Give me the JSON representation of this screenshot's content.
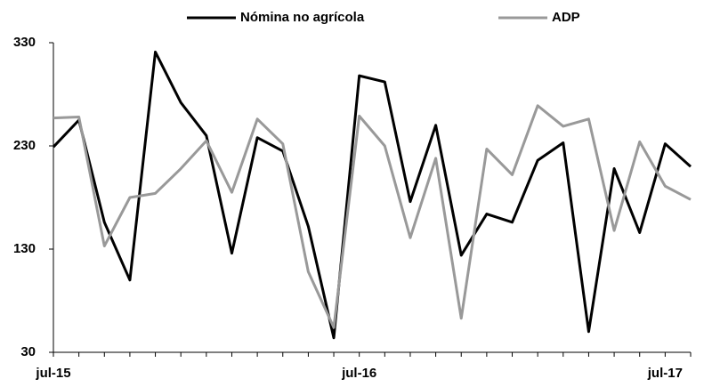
{
  "chart_data": {
    "type": "line",
    "categories": [
      "jul-15",
      null,
      null,
      null,
      null,
      null,
      null,
      null,
      null,
      null,
      null,
      null,
      "jul-16",
      null,
      null,
      null,
      null,
      null,
      null,
      null,
      null,
      null,
      null,
      null,
      "jul-17",
      null
    ],
    "series": [
      {
        "name": "Nómina no agrícola",
        "color": "#000000",
        "values": [
          229,
          255,
          156,
          100,
          321,
          272,
          240,
          126,
          238,
          225,
          152,
          44,
          298,
          292,
          176,
          250,
          124,
          164,
          156,
          216,
          233,
          50,
          208,
          146,
          232,
          210
        ]
      },
      {
        "name": "ADP",
        "color": "#999999",
        "values": [
          257,
          258,
          133,
          180,
          184,
          208,
          235,
          185,
          256,
          232,
          108,
          54,
          259,
          230,
          141,
          218,
          63,
          227,
          202,
          269,
          249,
          256,
          148,
          234,
          191,
          178
        ]
      }
    ],
    "ylim": [
      30,
      330
    ],
    "yticks": [
      30,
      130,
      230,
      330
    ],
    "grid": false,
    "legend": "top"
  }
}
